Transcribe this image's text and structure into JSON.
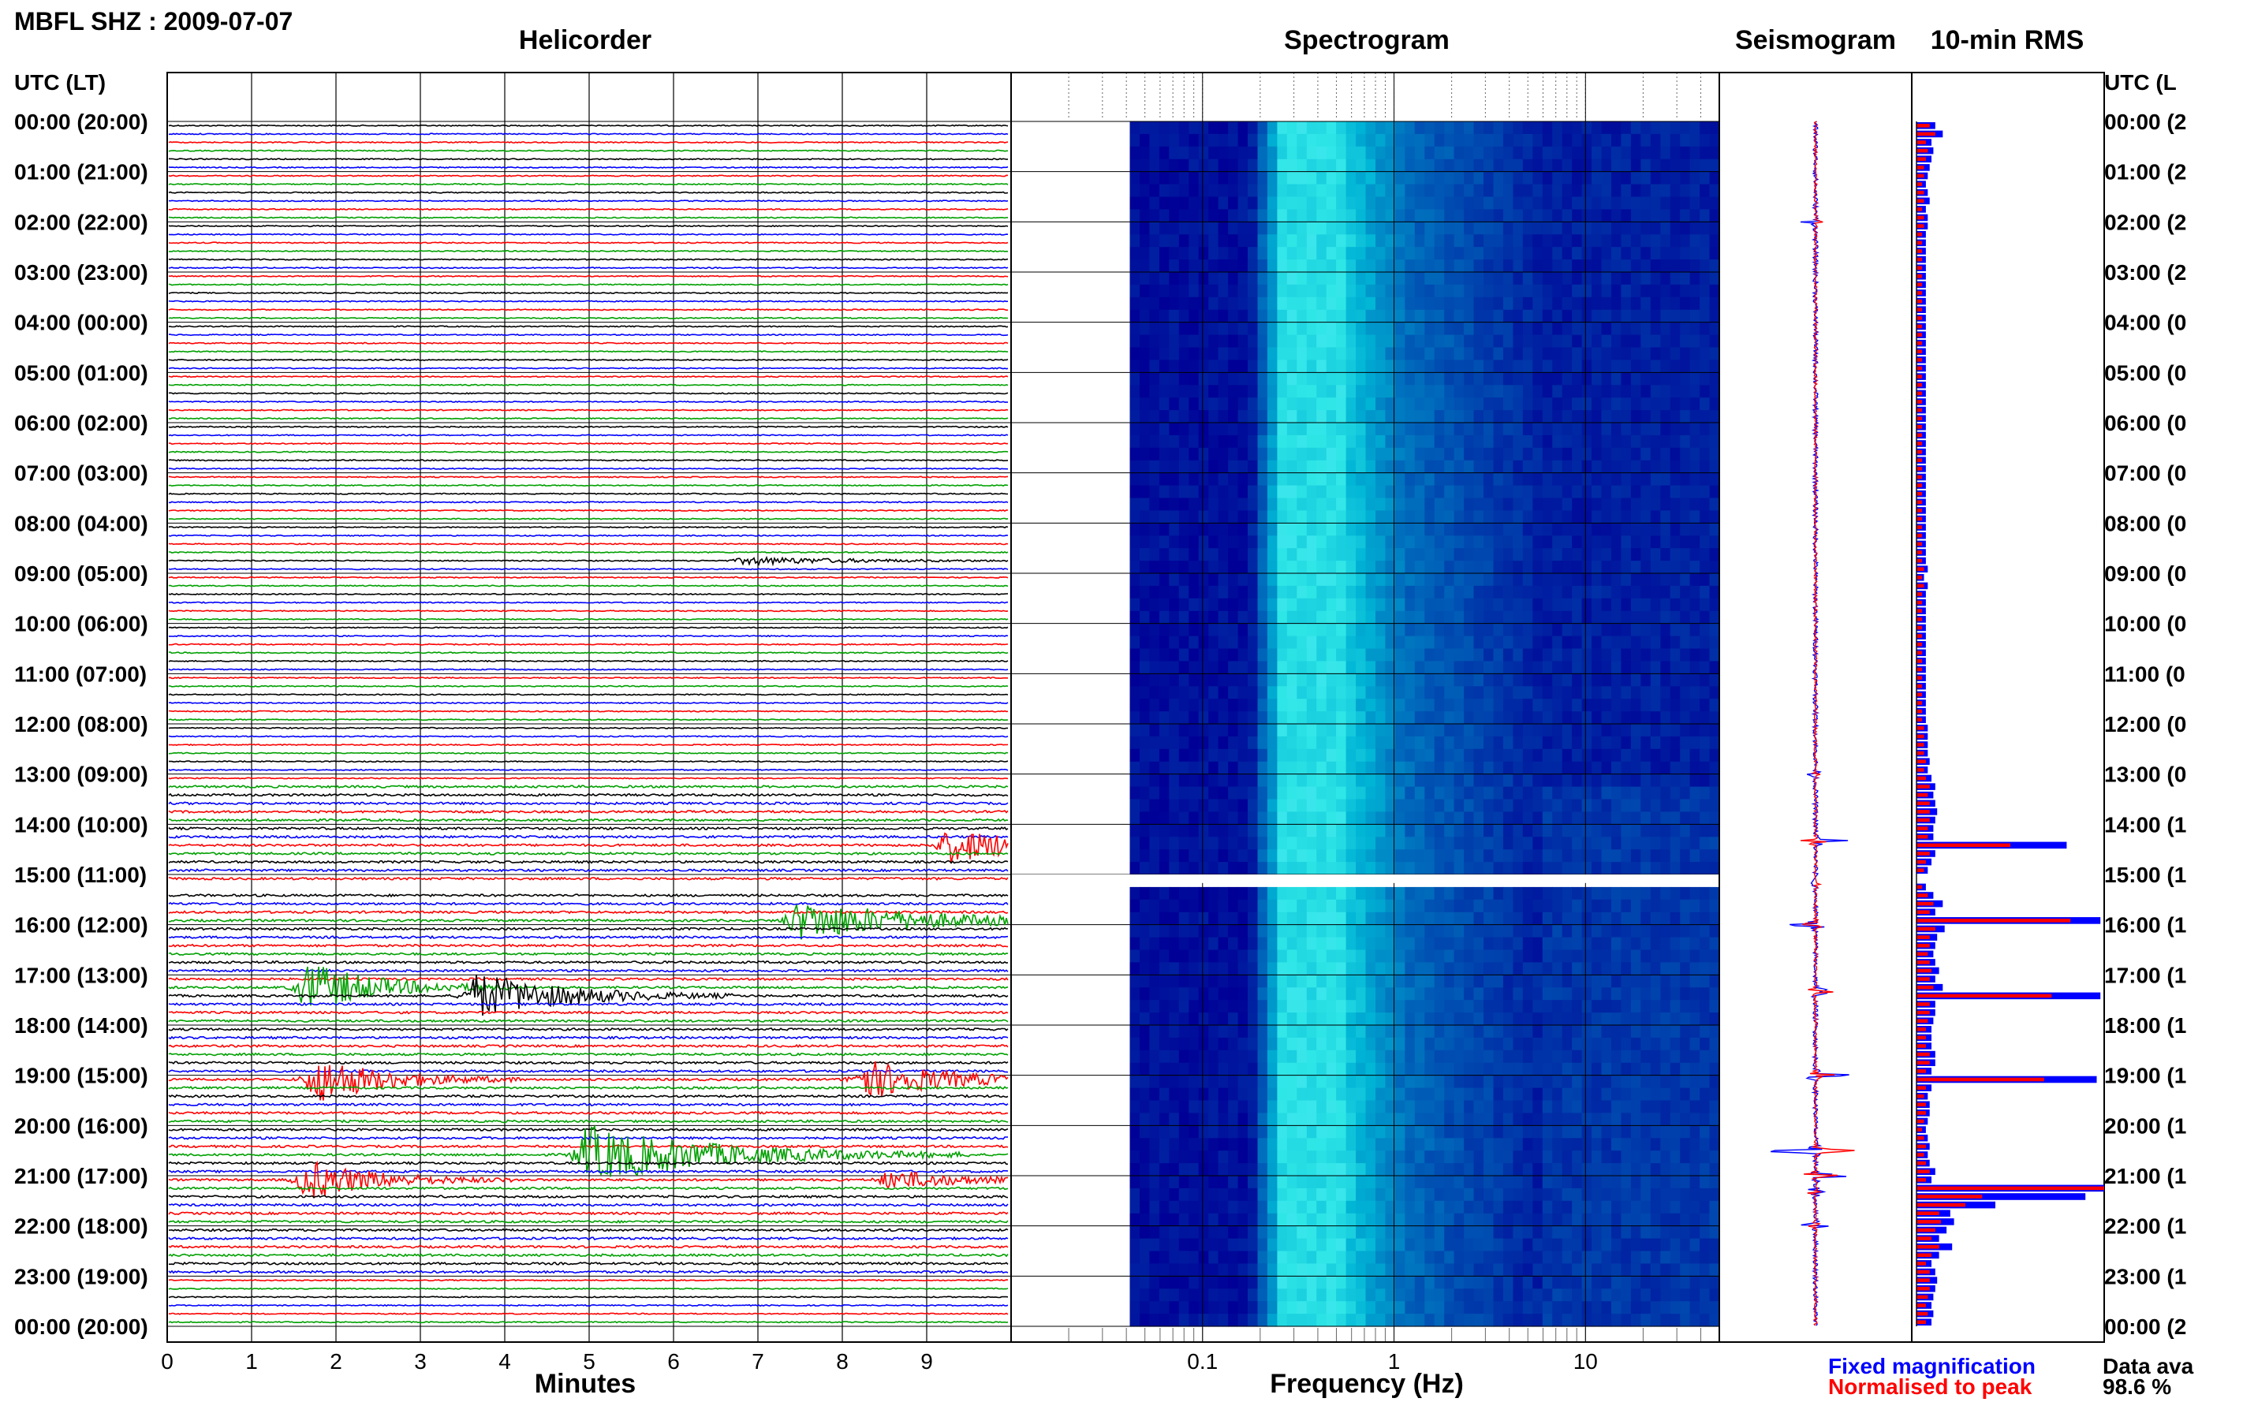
{
  "header": {
    "station_title": "MBFL SHZ : 2009-07-07",
    "utc_label_left": "UTC (LT)",
    "utc_label_right": "UTC (L"
  },
  "panels": {
    "helicorder": "Helicorder",
    "spectrogram": "Spectrogram",
    "seismogram": "Seismogram",
    "rms": "10-min RMS"
  },
  "time_labels_left": [
    "00:00 (20:00)",
    "01:00 (21:00)",
    "02:00 (22:00)",
    "03:00 (23:00)",
    "04:00 (00:00)",
    "05:00 (01:00)",
    "06:00 (02:00)",
    "07:00 (03:00)",
    "08:00 (04:00)",
    "09:00 (05:00)",
    "10:00 (06:00)",
    "11:00 (07:00)",
    "12:00 (08:00)",
    "13:00 (09:00)",
    "14:00 (10:00)",
    "15:00 (11:00)",
    "16:00 (12:00)",
    "17:00 (13:00)",
    "18:00 (14:00)",
    "19:00 (15:00)",
    "20:00 (16:00)",
    "21:00 (17:00)",
    "22:00 (18:00)",
    "23:00 (19:00)",
    "00:00 (20:00)"
  ],
  "time_labels_right": [
    "00:00 (2",
    "01:00 (2",
    "02:00 (2",
    "03:00 (2",
    "04:00 (0",
    "05:00 (0",
    "06:00 (0",
    "07:00 (0",
    "08:00 (0",
    "09:00 (0",
    "10:00 (0",
    "11:00 (0",
    "12:00 (0",
    "13:00 (0",
    "14:00 (1",
    "15:00 (1",
    "16:00 (1",
    "17:00 (1",
    "18:00 (1",
    "19:00 (1",
    "20:00 (1",
    "21:00 (1",
    "22:00 (1",
    "23:00 (1",
    "00:00 (2"
  ],
  "footer": {
    "minutes_label": "Minutes",
    "frequency_label": "Frequency (Hz)",
    "legend_fixed": "Fixed magnification",
    "legend_normalised": "Normalised to peak",
    "data_avail_label": "Data ava",
    "data_avail_value": "98.6 %"
  },
  "colors": {
    "trace_cycle": [
      "#000000",
      "#0000ff",
      "#ff0000",
      "#00a000"
    ],
    "fixed": "#0000ff",
    "normalised": "#ff0000"
  },
  "chart_data": {
    "type": "heatmap",
    "helicorder": {
      "x_ticks": [
        0,
        1,
        2,
        3,
        4,
        5,
        6,
        7,
        8,
        9
      ],
      "xlim": [
        0,
        10
      ],
      "trace_minutes": 10,
      "traces_per_hour": 6,
      "hours": 24,
      "gap_hours": [
        15.0,
        15.17
      ],
      "events": [
        {
          "hour": 14.33,
          "minute": 9.3,
          "amp": 0.9,
          "dur": 1.0
        },
        {
          "hour": 15.83,
          "minute": 7.5,
          "amp": 1.0,
          "dur": 1.5
        },
        {
          "hour": 17.17,
          "minute": 1.7,
          "amp": 1.3,
          "dur": 0.8
        },
        {
          "hour": 17.33,
          "minute": 3.7,
          "amp": 1.2,
          "dur": 1.0
        },
        {
          "hour": 19.0,
          "minute": 1.8,
          "amp": 1.2,
          "dur": 0.8
        },
        {
          "hour": 19.0,
          "minute": 8.3,
          "amp": 1.0,
          "dur": 1.0
        },
        {
          "hour": 20.5,
          "minute": 5.0,
          "amp": 1.5,
          "dur": 1.5
        },
        {
          "hour": 21.0,
          "minute": 1.7,
          "amp": 1.0,
          "dur": 0.8
        },
        {
          "hour": 21.0,
          "minute": 8.6,
          "amp": 0.5,
          "dur": 0.8
        },
        {
          "hour": 8.67,
          "minute": 6.9,
          "amp": 0.2,
          "dur": 1.2
        }
      ]
    },
    "spectrogram": {
      "x_scale": "log",
      "xlim": [
        0.01,
        50
      ],
      "x_ticks": [
        0.1,
        1,
        10
      ],
      "x_tick_labels": [
        "0.1",
        "1",
        "10"
      ],
      "peak_band_hz": [
        0.25,
        1.2
      ]
    },
    "seismogram": {
      "event_hours": [
        2.0,
        13.0,
        14.33,
        15.17,
        16.0,
        17.33,
        19.0,
        20.5,
        21.0,
        21.33,
        22.0
      ],
      "event_amps": [
        0.15,
        0.1,
        0.75,
        0.2,
        0.4,
        0.45,
        0.5,
        1.0,
        0.6,
        0.35,
        0.25
      ]
    },
    "rms": {
      "legend": [
        "Fixed magnification",
        "Normalised to peak"
      ],
      "fixed": [
        0.1,
        0.14,
        0.08,
        0.09,
        0.08,
        0.07,
        0.06,
        0.05,
        0.06,
        0.07,
        0.05,
        0.06,
        0.06,
        0.05,
        0.05,
        0.05,
        0.05,
        0.05,
        0.05,
        0.05,
        0.05,
        0.05,
        0.05,
        0.05,
        0.05,
        0.05,
        0.05,
        0.05,
        0.05,
        0.05,
        0.05,
        0.05,
        0.05,
        0.05,
        0.05,
        0.05,
        0.05,
        0.05,
        0.05,
        0.05,
        0.05,
        0.05,
        0.05,
        0.05,
        0.05,
        0.05,
        0.05,
        0.05,
        0.05,
        0.05,
        0.05,
        0.05,
        0.05,
        0.06,
        0.04,
        0.06,
        0.05,
        0.05,
        0.05,
        0.05,
        0.05,
        0.05,
        0.05,
        0.05,
        0.05,
        0.05,
        0.05,
        0.05,
        0.05,
        0.05,
        0.05,
        0.05,
        0.06,
        0.06,
        0.06,
        0.06,
        0.07,
        0.06,
        0.08,
        0.1,
        0.09,
        0.1,
        0.11,
        0.1,
        0.09,
        0.09,
        0.8,
        0.1,
        0.08,
        0.06,
        0.05,
        0.05,
        0.09,
        0.14,
        0.1,
        0.98,
        0.15,
        0.11,
        0.1,
        0.09,
        0.1,
        0.12,
        0.1,
        0.14,
        0.98,
        0.1,
        0.1,
        0.09,
        0.08,
        0.08,
        0.08,
        0.1,
        0.1,
        0.08,
        0.96,
        0.08,
        0.06,
        0.07,
        0.07,
        0.06,
        0.05,
        0.06,
        0.07,
        0.06,
        0.07,
        0.1,
        0.08,
        1.0,
        0.9,
        0.42,
        0.18,
        0.2,
        0.16,
        0.12,
        0.19,
        0.12,
        0.08,
        0.1,
        0.11,
        0.1,
        0.09,
        0.08,
        0.09,
        0.08
      ],
      "normalised": [
        0.07,
        0.1,
        0.05,
        0.06,
        0.05,
        0.04,
        0.04,
        0.03,
        0.04,
        0.04,
        0.03,
        0.04,
        0.04,
        0.03,
        0.03,
        0.03,
        0.03,
        0.03,
        0.03,
        0.03,
        0.03,
        0.03,
        0.03,
        0.03,
        0.03,
        0.03,
        0.03,
        0.03,
        0.03,
        0.03,
        0.03,
        0.03,
        0.03,
        0.03,
        0.03,
        0.03,
        0.03,
        0.03,
        0.03,
        0.03,
        0.03,
        0.03,
        0.03,
        0.03,
        0.03,
        0.03,
        0.03,
        0.03,
        0.03,
        0.03,
        0.03,
        0.03,
        0.03,
        0.04,
        0.03,
        0.04,
        0.03,
        0.03,
        0.03,
        0.03,
        0.03,
        0.03,
        0.03,
        0.03,
        0.03,
        0.03,
        0.03,
        0.03,
        0.03,
        0.03,
        0.03,
        0.03,
        0.04,
        0.04,
        0.04,
        0.04,
        0.05,
        0.04,
        0.05,
        0.07,
        0.06,
        0.07,
        0.07,
        0.07,
        0.06,
        0.06,
        0.5,
        0.07,
        0.05,
        0.04,
        0.03,
        0.03,
        0.06,
        0.09,
        0.07,
        0.82,
        0.1,
        0.07,
        0.07,
        0.06,
        0.07,
        0.08,
        0.07,
        0.09,
        0.72,
        0.07,
        0.07,
        0.06,
        0.05,
        0.05,
        0.05,
        0.07,
        0.07,
        0.05,
        0.68,
        0.05,
        0.04,
        0.05,
        0.05,
        0.04,
        0.03,
        0.04,
        0.05,
        0.04,
        0.05,
        0.07,
        0.05,
        1.0,
        0.35,
        0.26,
        0.12,
        0.13,
        0.1,
        0.08,
        0.12,
        0.08,
        0.05,
        0.07,
        0.07,
        0.07,
        0.06,
        0.05,
        0.06,
        0.05
      ]
    }
  }
}
